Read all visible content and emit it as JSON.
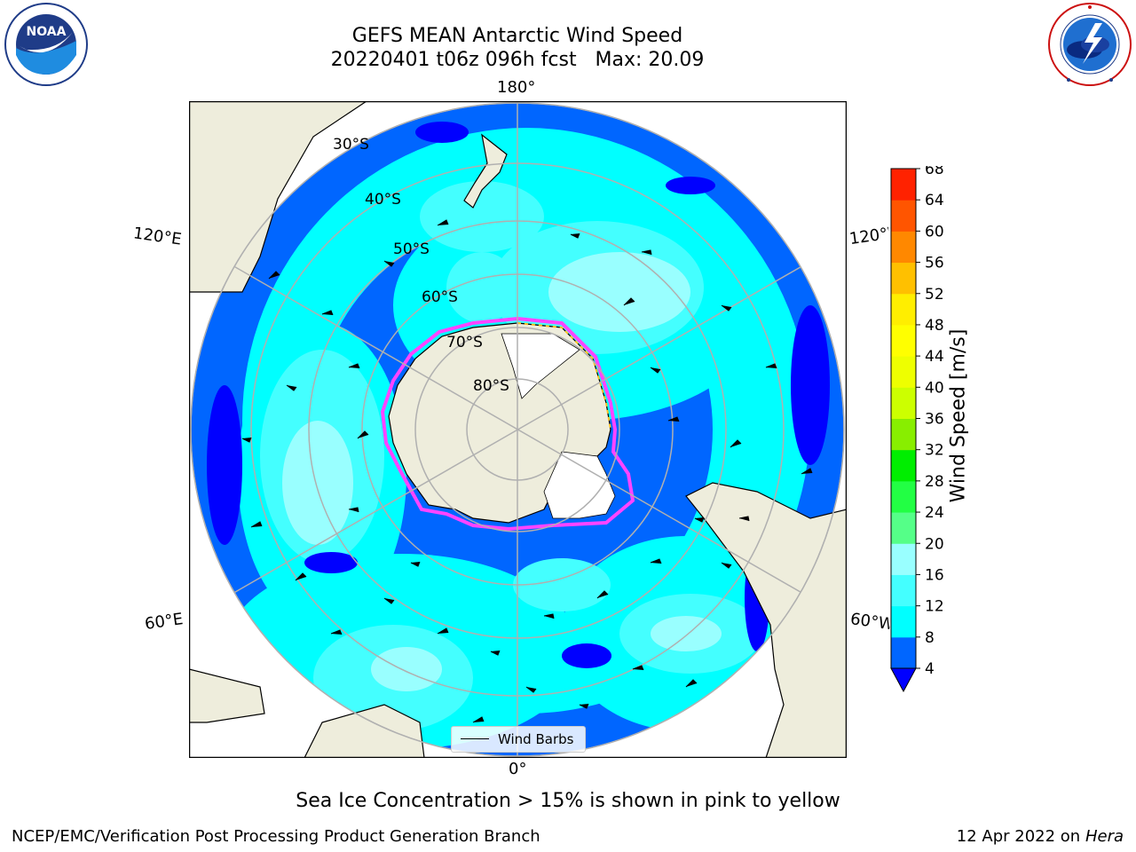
{
  "header": {
    "title_line1": "GEFS MEAN Antarctic Wind Speed",
    "title_line2": "20220401 t06z 096h fcst   Max: 20.09"
  },
  "logos": {
    "noaa": {
      "text": "NOAA",
      "ring_text": "NATIONAL OCEANIC AND ATMOSPHERIC ADMINISTRATION · U.S. DEPARTMENT OF COMMERCE"
    },
    "nws": {
      "ring_text": "NATIONAL WEATHER SERVICE"
    }
  },
  "map": {
    "projection": "south-polar-stereographic",
    "longitude_labels": {
      "top": "180°",
      "bottom": "0°",
      "upper_left": "120°E",
      "upper_right": "120°W",
      "lower_left": "60°E",
      "lower_right": "60°W"
    },
    "latitude_labels": [
      "30°S",
      "40°S",
      "50°S",
      "60°S",
      "70°S",
      "80°S"
    ],
    "legend": {
      "label": "Wind Barbs"
    },
    "colors": {
      "land": "#eeeddc",
      "ice_shelf": "#ffffff",
      "sea_ice_edge": [
        "#ff44ff",
        "#ffc020"
      ],
      "graticule": "#b0b0b0"
    }
  },
  "colorbar": {
    "label": "Wind Speed [m/s]",
    "ticks": [
      "4",
      "8",
      "12",
      "16",
      "20",
      "24",
      "28",
      "32",
      "36",
      "40",
      "44",
      "48",
      "52",
      "56",
      "60",
      "64",
      "68"
    ],
    "under_color": "#0000ff",
    "colors": [
      "#0066ff",
      "#00ffff",
      "#44ffff",
      "#99ffff",
      "#55ff88",
      "#22ff44",
      "#00ee00",
      "#88ee00",
      "#ccff00",
      "#eeff00",
      "#ffff00",
      "#ffee00",
      "#ffc000",
      "#ff8800",
      "#ff5500",
      "#ff2200"
    ]
  },
  "notes": {
    "sea_ice": "Sea Ice Concentration > 15% is shown in pink to yellow"
  },
  "footer": {
    "left": "NCEP/EMC/Verification Post Processing Product Generation Branch",
    "right_date": "12 Apr 2022 on",
    "right_host": "Hera"
  }
}
